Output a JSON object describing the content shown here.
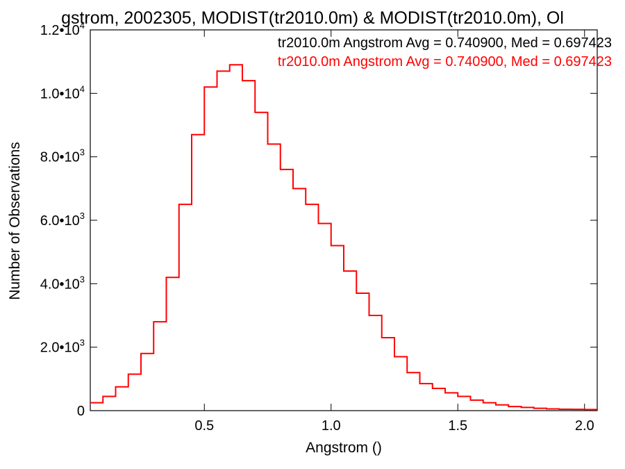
{
  "chart_data": {
    "type": "line",
    "title": "gstrom, 2002305, MODIST(tr2010.0m) & MODIST(tr2010.0m), Ol",
    "xlabel": "Angstrom ()",
    "ylabel": "Number of Observations",
    "xlim": [
      0.05,
      2.05
    ],
    "ylim": [
      0,
      12000
    ],
    "x_ticks": [
      {
        "value": 0.5,
        "label": "0.5"
      },
      {
        "value": 1.0,
        "label": "1.0"
      },
      {
        "value": 1.5,
        "label": "1.5"
      },
      {
        "value": 2.0,
        "label": "2.0"
      }
    ],
    "y_ticks": [
      {
        "value": 0,
        "mantissa": "0",
        "exponent": ""
      },
      {
        "value": 2000,
        "mantissa": "2.0•10",
        "exponent": "3"
      },
      {
        "value": 4000,
        "mantissa": "4.0•10",
        "exponent": "3"
      },
      {
        "value": 6000,
        "mantissa": "6.0•10",
        "exponent": "3"
      },
      {
        "value": 8000,
        "mantissa": "8.0•10",
        "exponent": "3"
      },
      {
        "value": 10000,
        "mantissa": "1.0•10",
        "exponent": "4"
      },
      {
        "value": 12000,
        "mantissa": "1.2•10",
        "exponent": "4"
      }
    ],
    "grid": false,
    "legend_position": "top-right",
    "annotations": [
      {
        "text": "tr2010.0m Angstrom Avg = 0.740900, Med = 0.697423",
        "color": "#000000"
      },
      {
        "text": "tr2010.0m Angstrom Avg = 0.740900, Med = 0.697423",
        "color": "#ff0000"
      }
    ],
    "series": [
      {
        "color": "#ff0000",
        "style": "step",
        "x": [
          0.05,
          0.1,
          0.15,
          0.2,
          0.25,
          0.3,
          0.35,
          0.4,
          0.45,
          0.5,
          0.55,
          0.6,
          0.65,
          0.7,
          0.75,
          0.8,
          0.85,
          0.9,
          0.95,
          1.0,
          1.05,
          1.1,
          1.15,
          1.2,
          1.25,
          1.3,
          1.35,
          1.4,
          1.45,
          1.5,
          1.55,
          1.6,
          1.65,
          1.7,
          1.75,
          1.8,
          1.85,
          1.9,
          1.95,
          2.0,
          2.05
        ],
        "y": [
          250,
          450,
          750,
          1150,
          1800,
          2800,
          4200,
          6500,
          8700,
          10200,
          10700,
          10900,
          10400,
          9400,
          8400,
          7600,
          7000,
          6500,
          5900,
          5200,
          4400,
          3700,
          3000,
          2300,
          1700,
          1200,
          850,
          700,
          560,
          450,
          330,
          250,
          180,
          130,
          100,
          75,
          55,
          45,
          40,
          35,
          30
        ]
      }
    ]
  }
}
